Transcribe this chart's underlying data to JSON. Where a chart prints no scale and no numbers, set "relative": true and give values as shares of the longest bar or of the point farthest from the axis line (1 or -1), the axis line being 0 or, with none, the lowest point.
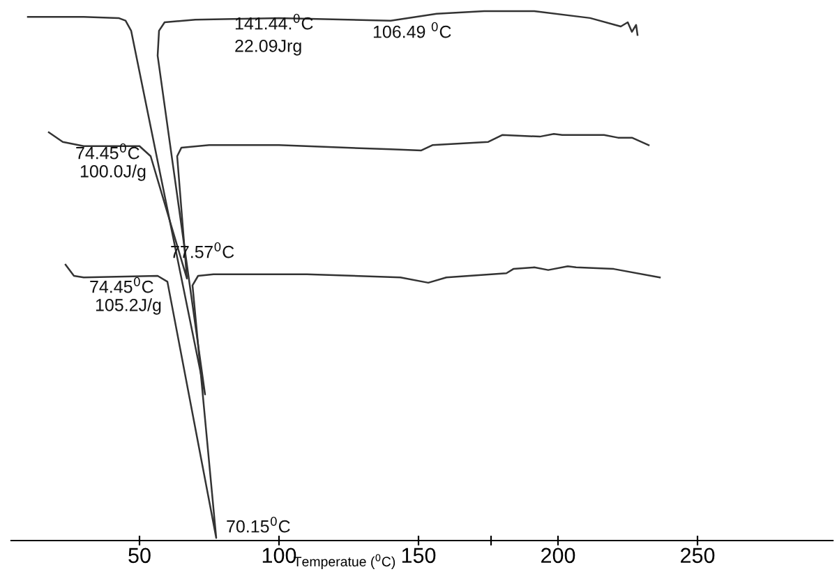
{
  "chart_data": {
    "type": "line",
    "relative": true,
    "xlabel": "Temperatue ($^{0}$C)",
    "xlim": [
      4,
      298.5
    ],
    "xticks": [
      50,
      100,
      150,
      {
        "value": 176,
        "label": null
      },
      200,
      250
    ],
    "grid": false,
    "legend": false,
    "marker": "none",
    "line_style": "solid",
    "series": [
      {
        "color": "#333333",
        "x": [
          10,
          30,
          42.5,
          45,
          47,
          73.5,
          56.5,
          57,
          59,
          70,
          100,
          140,
          156.5,
          173.5,
          191.5,
          211.5,
          222.5,
          225,
          226.5,
          228,
          228.5
        ],
        "values": [
          0.989,
          0.989,
          0.987,
          0.982,
          0.963,
          0.276,
          0.916,
          0.963,
          0.979,
          0.984,
          0.987,
          0.982,
          0.995,
          1.0,
          1.0,
          0.987,
          0.971,
          0.979,
          0.961,
          0.974,
          0.955
        ]
      },
      {
        "color": "#333333",
        "x": [
          17.5,
          22.5,
          30,
          50,
          54,
          67,
          63.5,
          65,
          75,
          100,
          140,
          151,
          155,
          175,
          180,
          193.5,
          198.5,
          201.5,
          216.5,
          221.5,
          226.5,
          232.5
        ],
        "values": [
          0.771,
          0.753,
          0.745,
          0.745,
          0.726,
          0.495,
          0.726,
          0.742,
          0.747,
          0.747,
          0.739,
          0.737,
          0.747,
          0.753,
          0.766,
          0.763,
          0.768,
          0.766,
          0.766,
          0.761,
          0.761,
          0.747
        ]
      },
      {
        "color": "#333333",
        "x": [
          23.5,
          26.5,
          30,
          56.5,
          60,
          77.5,
          69,
          71,
          76.5,
          110,
          143.5,
          153.5,
          160,
          181.5,
          184,
          191.5,
          196.5,
          203.5,
          206.5,
          220,
          236.5
        ],
        "values": [
          0.521,
          0.5,
          0.497,
          0.5,
          0.489,
          0.005,
          0.482,
          0.5,
          0.503,
          0.503,
          0.497,
          0.487,
          0.497,
          0.505,
          0.513,
          0.516,
          0.511,
          0.518,
          0.516,
          0.513,
          0.497
        ]
      }
    ],
    "annotations": [
      "141.44.$^{0}$C",
      "22.09Jrg",
      "106.49 $^{0}$C",
      "74.45$^{0}$C",
      "100.0J/g",
      "77.57$^{0}$C",
      "74.45$^{0}$C",
      "105.2J/g",
      "70.15$^{0}$C"
    ]
  }
}
